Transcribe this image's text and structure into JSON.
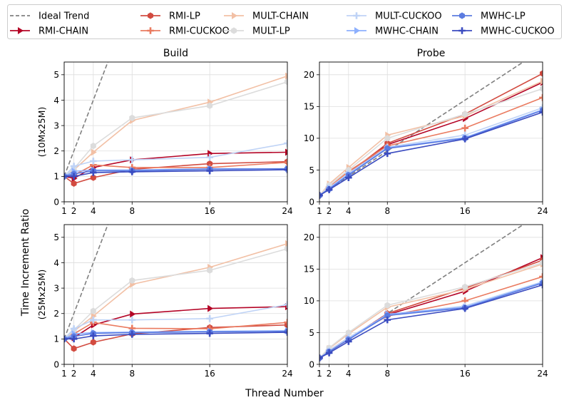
{
  "figure": {
    "ylabel": "Time Increment Ratio",
    "xlabel": "Thread Number",
    "row_labels": [
      "(10Mx25M)",
      "(25Mx25M)"
    ],
    "col_titles": [
      "Build",
      "Probe"
    ]
  },
  "legend": {
    "placement": "top, outside plots, 5 columns",
    "entries": [
      {
        "name": "Ideal Trend",
        "color": "#808080",
        "marker": "none",
        "dashed": true
      },
      {
        "name": "RMI-CHAIN",
        "color": "#b40426",
        "marker": "triangle-right"
      },
      {
        "name": "RMI-LP",
        "color": "#d24b40",
        "marker": "hexagon"
      },
      {
        "name": "RMI-CUCKOO",
        "color": "#ea7b60",
        "marker": "plus"
      },
      {
        "name": "MULT-CHAIN",
        "color": "#f2c0a5",
        "marker": "triangle-right"
      },
      {
        "name": "MULT-LP",
        "color": "#dcdcdc",
        "marker": "hexagon"
      },
      {
        "name": "MULT-CUCKOO",
        "color": "#bfd3f6",
        "marker": "plus"
      },
      {
        "name": "MWHC-CHAIN",
        "color": "#8db0fe",
        "marker": "triangle-right"
      },
      {
        "name": "MWHC-LP",
        "color": "#5b7be0",
        "marker": "hexagon"
      },
      {
        "name": "MWHC-CUCKOO",
        "color": "#3b4cc0",
        "marker": "plus"
      }
    ]
  },
  "chart_data": [
    {
      "type": "line",
      "title": "Build",
      "row_label": "(10Mx25M)",
      "x": [
        1,
        2,
        4,
        8,
        16,
        24
      ],
      "xticks": [
        1,
        2,
        4,
        8,
        16,
        24
      ],
      "xlim": [
        1,
        24
      ],
      "ylim": [
        0,
        5.5
      ],
      "yticks": [
        0,
        1,
        2,
        3,
        4,
        5
      ],
      "grid": true,
      "ideal": [
        1,
        2,
        4,
        8,
        16,
        24
      ],
      "series": [
        {
          "name": "RMI-CHAIN",
          "values": [
            1.0,
            0.92,
            1.35,
            1.65,
            1.9,
            1.95
          ]
        },
        {
          "name": "RMI-LP",
          "values": [
            1.0,
            0.72,
            0.95,
            1.28,
            1.5,
            1.58
          ]
        },
        {
          "name": "RMI-CUCKOO",
          "values": [
            1.0,
            1.05,
            1.45,
            1.35,
            1.35,
            1.55
          ]
        },
        {
          "name": "MULT-CHAIN",
          "values": [
            1.0,
            1.25,
            1.95,
            3.2,
            3.92,
            4.95
          ]
        },
        {
          "name": "MULT-LP",
          "values": [
            1.0,
            1.3,
            2.2,
            3.3,
            3.78,
            4.72
          ]
        },
        {
          "name": "MULT-CUCKOO",
          "values": [
            1.0,
            1.4,
            1.6,
            1.65,
            1.75,
            2.3
          ]
        },
        {
          "name": "MWHC-CHAIN",
          "values": [
            1.0,
            1.2,
            1.25,
            1.25,
            1.3,
            1.3
          ]
        },
        {
          "name": "MWHC-LP",
          "values": [
            1.0,
            1.1,
            1.22,
            1.22,
            1.28,
            1.3
          ]
        },
        {
          "name": "MWHC-CUCKOO",
          "values": [
            1.0,
            1.0,
            1.15,
            1.18,
            1.22,
            1.26
          ]
        }
      ]
    },
    {
      "type": "line",
      "title": "Probe",
      "row_label": "(10Mx25M)",
      "x": [
        1,
        2,
        4,
        8,
        16,
        24
      ],
      "xticks": [
        1,
        2,
        4,
        8,
        16,
        24
      ],
      "xlim": [
        1,
        24
      ],
      "ylim": [
        0,
        22
      ],
      "yticks": [
        0,
        5,
        10,
        15,
        20
      ],
      "grid": true,
      "ideal": [
        1,
        2,
        4,
        8,
        16,
        24
      ],
      "series": [
        {
          "name": "RMI-CHAIN",
          "values": [
            1.0,
            2.1,
            4.3,
            9.0,
            13.1,
            18.8
          ]
        },
        {
          "name": "RMI-LP",
          "values": [
            1.0,
            2.2,
            4.5,
            9.2,
            13.8,
            20.2
          ]
        },
        {
          "name": "RMI-CUCKOO",
          "values": [
            1.0,
            2.3,
            4.8,
            8.8,
            11.6,
            16.4
          ]
        },
        {
          "name": "MULT-CHAIN",
          "values": [
            1.0,
            2.8,
            5.4,
            10.5,
            13.5,
            19.0
          ]
        },
        {
          "name": "MULT-LP",
          "values": [
            1.0,
            2.6,
            5.0,
            10.0,
            13.8,
            17.8
          ]
        },
        {
          "name": "MULT-CUCKOO",
          "values": [
            1.0,
            2.2,
            4.5,
            8.6,
            10.5,
            14.8
          ]
        },
        {
          "name": "MWHC-CHAIN",
          "values": [
            1.0,
            2.1,
            4.3,
            8.5,
            10.1,
            14.5
          ]
        },
        {
          "name": "MWHC-LP",
          "values": [
            1.0,
            2.0,
            4.2,
            8.4,
            10.0,
            14.4
          ]
        },
        {
          "name": "MWHC-CUCKOO",
          "values": [
            1.0,
            1.9,
            3.8,
            7.6,
            9.9,
            14.1
          ]
        }
      ]
    },
    {
      "type": "line",
      "title": "",
      "row_label": "(25Mx25M)",
      "x": [
        1,
        2,
        4,
        8,
        16,
        24
      ],
      "xticks": [
        1,
        2,
        4,
        8,
        16,
        24
      ],
      "xlim": [
        1,
        24
      ],
      "ylim": [
        0,
        5.5
      ],
      "yticks": [
        0,
        1,
        2,
        3,
        4,
        5
      ],
      "grid": true,
      "ideal": [
        1,
        2,
        4,
        8,
        16,
        24
      ],
      "series": [
        {
          "name": "RMI-CHAIN",
          "values": [
            1.0,
            1.05,
            1.55,
            1.98,
            2.2,
            2.27
          ]
        },
        {
          "name": "RMI-LP",
          "values": [
            1.0,
            0.62,
            0.87,
            1.2,
            1.45,
            1.55
          ]
        },
        {
          "name": "RMI-CUCKOO",
          "values": [
            1.0,
            1.2,
            1.65,
            1.42,
            1.4,
            1.65
          ]
        },
        {
          "name": "MULT-CHAIN",
          "values": [
            1.0,
            1.3,
            1.9,
            3.15,
            3.82,
            4.75
          ]
        },
        {
          "name": "MULT-LP",
          "values": [
            1.0,
            1.35,
            2.1,
            3.3,
            3.7,
            4.55
          ]
        },
        {
          "name": "MULT-CUCKOO",
          "values": [
            1.0,
            1.4,
            1.75,
            1.75,
            1.8,
            2.35
          ]
        },
        {
          "name": "MWHC-CHAIN",
          "values": [
            1.0,
            1.2,
            1.25,
            1.27,
            1.3,
            1.32
          ]
        },
        {
          "name": "MWHC-LP",
          "values": [
            1.0,
            1.1,
            1.22,
            1.25,
            1.28,
            1.3
          ]
        },
        {
          "name": "MWHC-CUCKOO",
          "values": [
            1.0,
            1.0,
            1.12,
            1.18,
            1.22,
            1.26
          ]
        }
      ]
    },
    {
      "type": "line",
      "title": "",
      "row_label": "(25Mx25M)",
      "x": [
        1,
        2,
        4,
        8,
        16,
        24
      ],
      "xticks": [
        1,
        2,
        4,
        8,
        16,
        24
      ],
      "xlim": [
        1,
        24
      ],
      "ylim": [
        0,
        22
      ],
      "yticks": [
        0,
        5,
        10,
        15,
        20
      ],
      "grid": true,
      "ideal": [
        1,
        2,
        4,
        8,
        16,
        24
      ],
      "series": [
        {
          "name": "RMI-CHAIN",
          "values": [
            1.0,
            2.0,
            3.9,
            7.8,
            11.5,
            16.8
          ]
        },
        {
          "name": "RMI-LP",
          "values": [
            1.0,
            2.1,
            4.0,
            8.0,
            12.0,
            16.4
          ]
        },
        {
          "name": "RMI-CUCKOO",
          "values": [
            1.0,
            2.2,
            4.2,
            7.6,
            10.0,
            13.8
          ]
        },
        {
          "name": "MULT-CHAIN",
          "values": [
            1.0,
            2.5,
            4.8,
            9.0,
            11.8,
            15.8
          ]
        },
        {
          "name": "MULT-LP",
          "values": [
            1.0,
            2.6,
            5.0,
            9.3,
            12.2,
            16.0
          ]
        },
        {
          "name": "MULT-CUCKOO",
          "values": [
            1.0,
            2.2,
            4.2,
            7.8,
            9.2,
            13.0
          ]
        },
        {
          "name": "MWHC-CHAIN",
          "values": [
            1.0,
            2.0,
            4.0,
            7.9,
            9.0,
            12.9
          ]
        },
        {
          "name": "MWHC-LP",
          "values": [
            1.0,
            2.0,
            3.9,
            7.7,
            8.9,
            12.8
          ]
        },
        {
          "name": "MWHC-CUCKOO",
          "values": [
            1.0,
            1.8,
            3.6,
            7.0,
            8.8,
            12.5
          ]
        }
      ]
    }
  ]
}
